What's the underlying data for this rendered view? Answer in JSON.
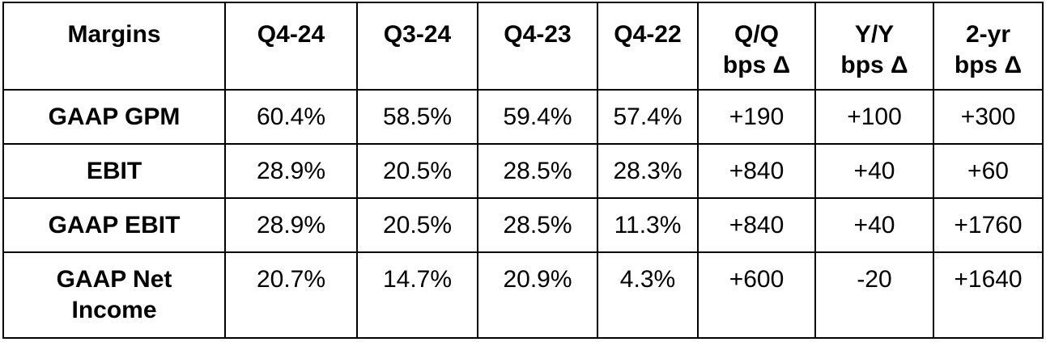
{
  "table": {
    "header": [
      "Margins",
      "Q4-24",
      "Q3-24",
      "Q4-23",
      "Q4-22",
      "Q/Q\nbps Δ",
      "Y/Y\nbps Δ",
      "2-yr\nbps Δ"
    ],
    "rows": [
      [
        "GAAP GPM",
        "60.4%",
        "58.5%",
        "59.4%",
        "57.4%",
        "+190",
        "+100",
        "+300"
      ],
      [
        "EBIT",
        "28.9%",
        "20.5%",
        "28.5%",
        "28.3%",
        "+840",
        "+40",
        "+60"
      ],
      [
        "GAAP EBIT",
        "28.9%",
        "20.5%",
        "28.5%",
        "11.3%",
        "+840",
        "+40",
        "+1760"
      ],
      [
        "GAAP Net\nIncome",
        "20.7%",
        "14.7%",
        "20.9%",
        "4.3%",
        "+600",
        "-20",
        "+1640"
      ]
    ]
  }
}
